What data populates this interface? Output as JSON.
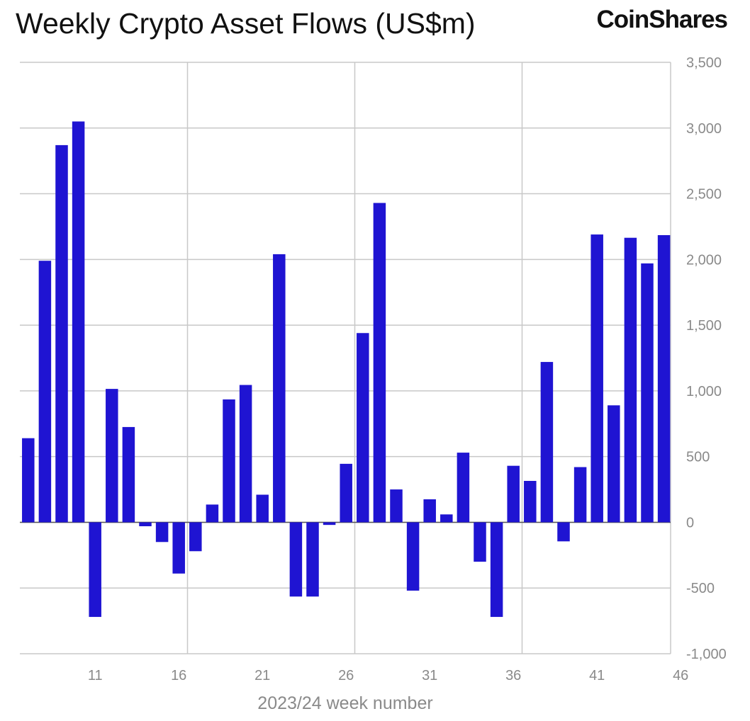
{
  "header": {
    "title": "Weekly Crypto Asset Flows (US$m)",
    "brand": "CoinShares"
  },
  "chart_data": {
    "type": "bar",
    "title": "Weekly Crypto Asset Flows (US$m)",
    "xlabel": "2023/24 week number",
    "ylabel": "",
    "ylim": [
      -1000,
      3500
    ],
    "y_ticks": [
      -1000,
      -500,
      0,
      500,
      1000,
      1500,
      2000,
      2500,
      3000,
      3500
    ],
    "y_tick_labels": [
      "-1,000",
      "-500",
      "0",
      "500",
      "1,000",
      "1,500",
      "2,000",
      "2,500",
      "3,000",
      "3,500"
    ],
    "x_tick_labels": [
      "11",
      "16",
      "21",
      "26",
      "31",
      "36",
      "41",
      "46"
    ],
    "y_axis_position": "right",
    "grid": true,
    "bar_color": "#1f14d2",
    "categories": [
      "7",
      "8",
      "9",
      "10",
      "11",
      "12",
      "13",
      "14",
      "15",
      "16",
      "17",
      "18",
      "19",
      "20",
      "21",
      "22",
      "23",
      "24",
      "25",
      "26",
      "27",
      "28",
      "29",
      "30",
      "31",
      "32",
      "33",
      "34",
      "35",
      "36",
      "37",
      "38",
      "39",
      "40",
      "41",
      "42",
      "43",
      "44",
      "45",
      "46"
    ],
    "values": [
      640,
      1990,
      2870,
      3050,
      -720,
      1015,
      725,
      -30,
      -150,
      -390,
      -220,
      135,
      935,
      1045,
      210,
      2040,
      -565,
      -565,
      -20,
      445,
      1440,
      2430,
      250,
      -520,
      175,
      60,
      530,
      -300,
      -720,
      430,
      315,
      1220,
      -145,
      420,
      2190,
      890,
      2165,
      1970,
      2185,
      0
    ]
  }
}
